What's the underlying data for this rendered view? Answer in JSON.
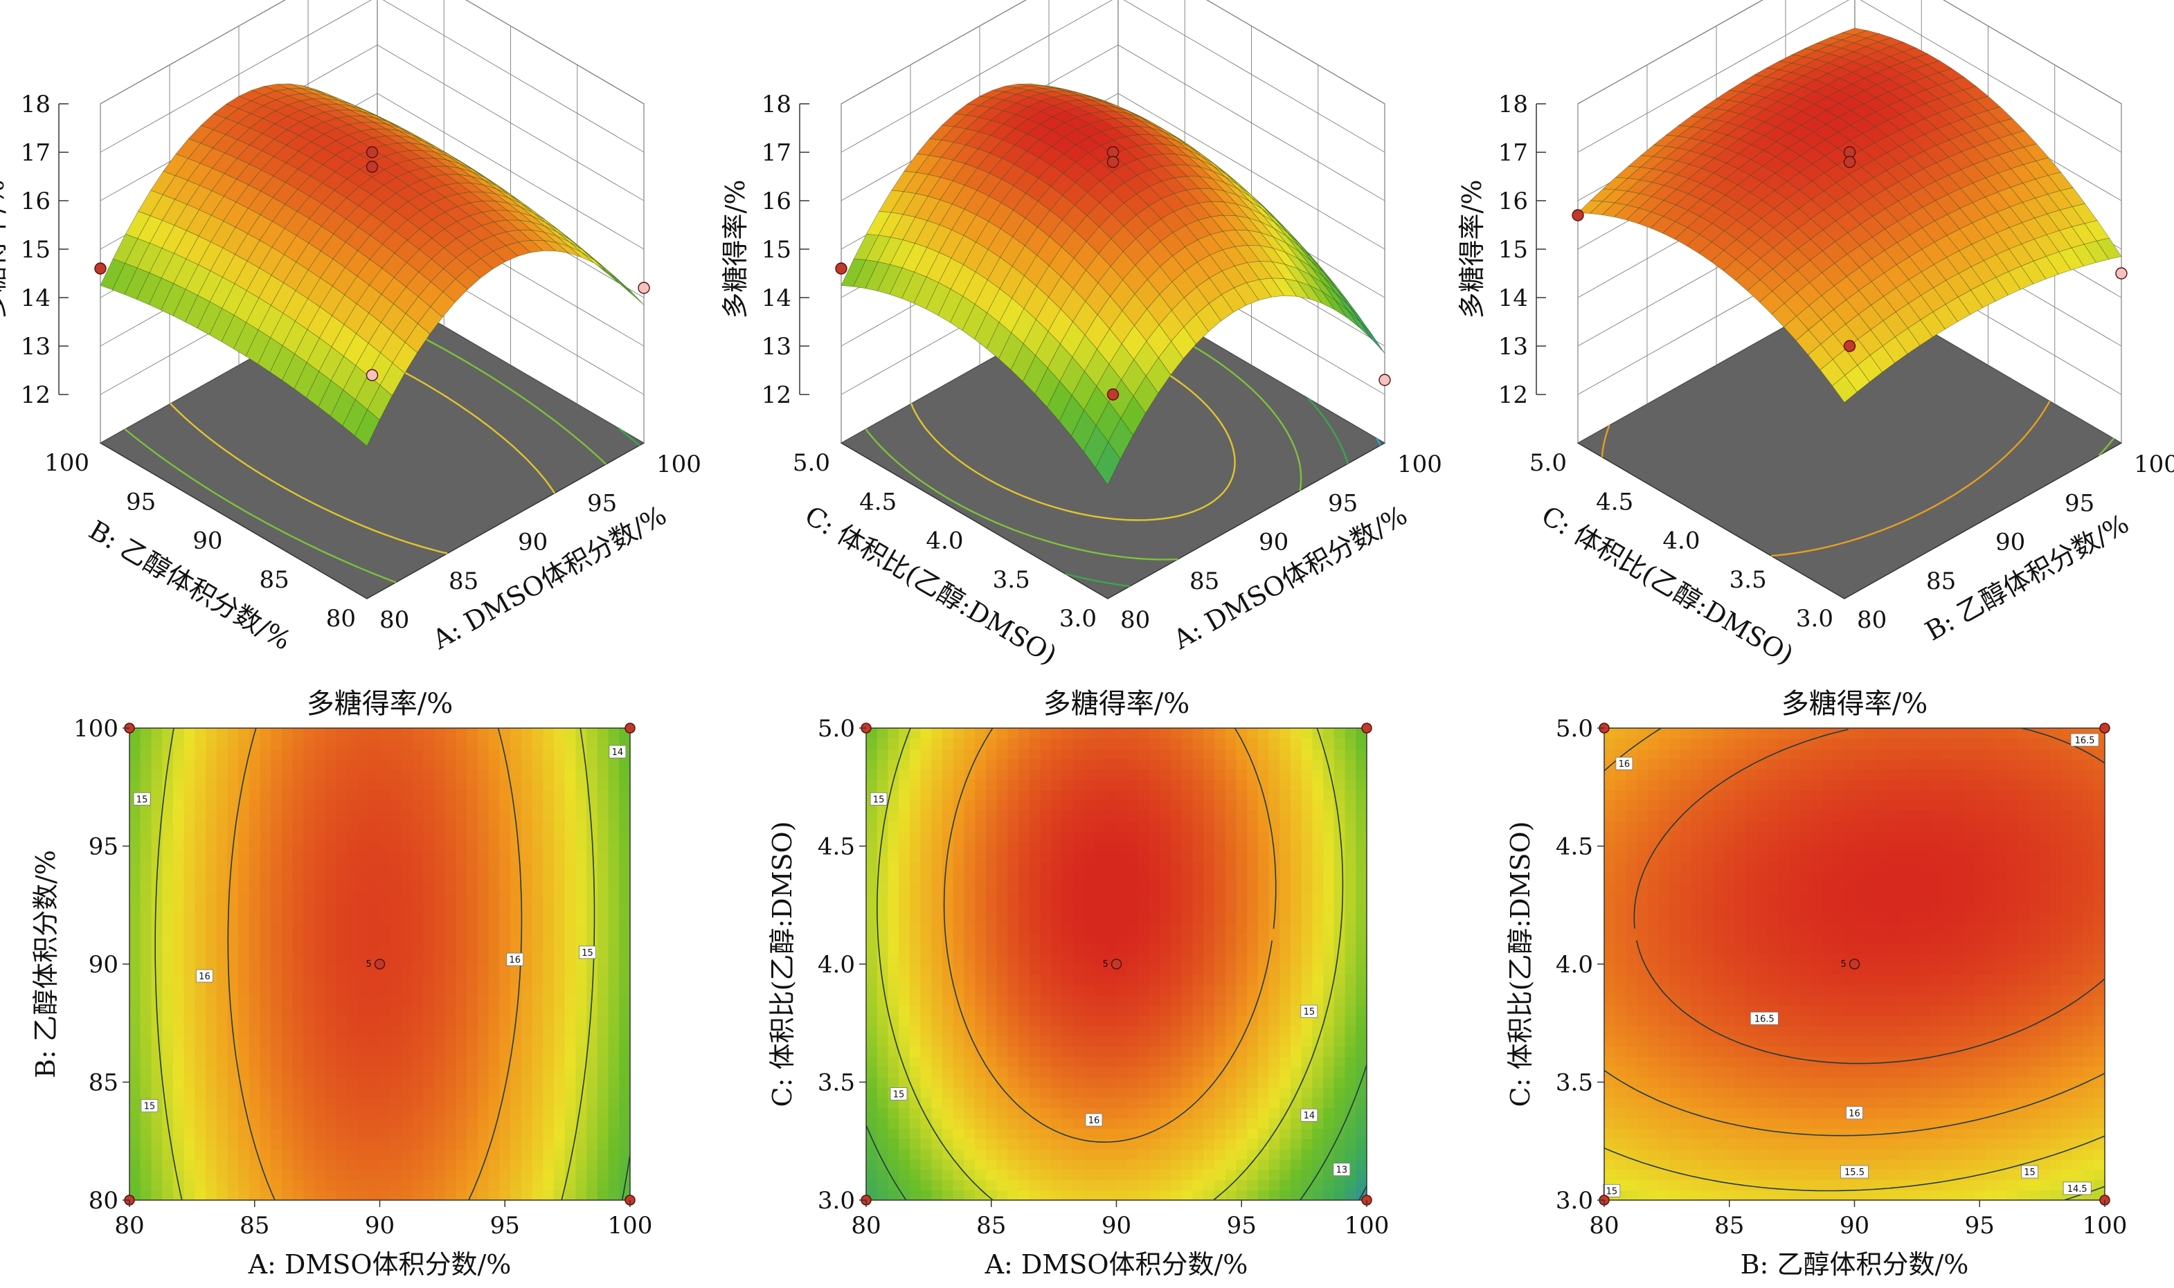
{
  "chart_data": [
    {
      "type": "surface3d",
      "zlabel": "多糖得率/%",
      "x_label": "A: DMSO体积分数/%",
      "x_ticks": [
        "80",
        "85",
        "90",
        "95",
        "100"
      ],
      "y_label": "B: 乙醇体积分数/%",
      "y_ticks": [
        "80",
        "85",
        "90",
        "95",
        "100"
      ],
      "z_ticks": [
        "12",
        "13",
        "14",
        "15",
        "16",
        "17",
        "18"
      ],
      "xlim": [
        80,
        100
      ],
      "ylim": [
        80,
        100
      ],
      "zlim": [
        11,
        18
      ],
      "model": {
        "c0": 16.8,
        "cx": -0.1,
        "cy": 0.1,
        "cxx": -2.35,
        "cyy": -0.35,
        "cxy": 0.05
      },
      "design_points": [
        {
          "x": 0,
          "y": 0,
          "z": 17.0,
          "color": "#c0392b"
        },
        {
          "x": 0,
          "y": 0,
          "z": 16.7,
          "color": "#c0392b"
        },
        {
          "x": -1,
          "y": 1,
          "z": 14.6,
          "color": "#c0392b"
        },
        {
          "x": 1,
          "y": -1,
          "z": 14.2,
          "color": "#f4c2c2"
        },
        {
          "x": 0,
          "y": 0,
          "z": 12.4,
          "color": "#f4c2c2"
        }
      ]
    },
    {
      "type": "surface3d",
      "zlabel": "多糖得率/%",
      "x_label": "A: DMSO体积分数/%",
      "x_ticks": [
        "80",
        "85",
        "90",
        "95",
        "100"
      ],
      "y_label": "C: 体积比(乙醇:DMSO)",
      "y_ticks": [
        "3.0",
        "3.5",
        "4.0",
        "4.5",
        "5.0"
      ],
      "z_ticks": [
        "12",
        "13",
        "14",
        "15",
        "16",
        "17",
        "18"
      ],
      "xlim": [
        80,
        100
      ],
      "ylim": [
        3.0,
        5.0
      ],
      "zlim": [
        11,
        18
      ],
      "model": {
        "c0": 16.95,
        "cx": -0.15,
        "cy": 0.55,
        "cxx": -2.35,
        "cyy": -0.95,
        "cxy": 0.1
      },
      "design_points": [
        {
          "x": 0,
          "y": 0,
          "z": 17.0,
          "color": "#c0392b"
        },
        {
          "x": 0,
          "y": 0,
          "z": 16.8,
          "color": "#c0392b"
        },
        {
          "x": -1,
          "y": 1,
          "z": 14.6,
          "color": "#c0392b"
        },
        {
          "x": 1,
          "y": -1,
          "z": 12.3,
          "color": "#f4c2c2"
        },
        {
          "x": 0,
          "y": 0,
          "z": 12.0,
          "color": "#c0392b"
        }
      ]
    },
    {
      "type": "surface3d",
      "zlabel": "多糖得率/%",
      "x_label": "B: 乙醇体积分数/%",
      "x_ticks": [
        "80",
        "85",
        "90",
        "95",
        "100"
      ],
      "y_label": "C: 体积比(乙醇:DMSO)",
      "y_ticks": [
        "3.0",
        "3.5",
        "4.0",
        "4.5",
        "5.0"
      ],
      "z_ticks": [
        "12",
        "13",
        "14",
        "15",
        "16",
        "17",
        "18"
      ],
      "xlim": [
        80,
        100
      ],
      "ylim": [
        3.0,
        5.0
      ],
      "zlim": [
        11,
        18
      ],
      "model": {
        "c0": 16.9,
        "cx": 0.1,
        "cy": 0.55,
        "cxx": -0.45,
        "cyy": -0.95,
        "cxy": 0.2
      },
      "design_points": [
        {
          "x": 0,
          "y": 0,
          "z": 17.0,
          "color": "#c0392b"
        },
        {
          "x": 0,
          "y": 0,
          "z": 16.8,
          "color": "#c0392b"
        },
        {
          "x": -1,
          "y": 1,
          "z": 15.7,
          "color": "#c0392b"
        },
        {
          "x": 1,
          "y": -1,
          "z": 14.5,
          "color": "#f4c2c2"
        },
        {
          "x": 0,
          "y": 0,
          "z": 13.0,
          "color": "#c0392b"
        }
      ]
    },
    {
      "type": "contour",
      "title": "多糖得率/%",
      "xlabel": "A: DMSO体积分数/%",
      "ylabel": "B: 乙醇体积分数/%",
      "x_ticks": [
        "80",
        "85",
        "90",
        "95",
        "100"
      ],
      "y_ticks": [
        "80",
        "85",
        "90",
        "95",
        "100"
      ],
      "xlim": [
        80,
        100
      ],
      "ylim": [
        80,
        100
      ],
      "model": {
        "c0": 16.8,
        "cx": -0.1,
        "cy": 0.1,
        "cxx": -2.35,
        "cyy": -0.35,
        "cxy": 0.05
      },
      "levels": [
        14,
        15,
        16
      ],
      "level_labels": [
        {
          "text": "14",
          "x": 99.5,
          "y": 99.0
        },
        {
          "text": "15",
          "x": 80.5,
          "y": 97.0
        },
        {
          "text": "15",
          "x": 98.3,
          "y": 90.5
        },
        {
          "text": "15",
          "x": 80.8,
          "y": 84.0
        },
        {
          "text": "16",
          "x": 83.0,
          "y": 89.5
        },
        {
          "text": "16",
          "x": 95.4,
          "y": 90.2
        }
      ],
      "center_label": "5",
      "points": [
        [
          80,
          80
        ],
        [
          80,
          100
        ],
        [
          100,
          80
        ],
        [
          100,
          100
        ],
        [
          90,
          90
        ]
      ]
    },
    {
      "type": "contour",
      "title": "多糖得率/%",
      "xlabel": "A: DMSO体积分数/%",
      "ylabel": "C: 体积比(乙醇:DMSO)",
      "x_ticks": [
        "80",
        "85",
        "90",
        "95",
        "100"
      ],
      "y_ticks": [
        "3.0",
        "3.5",
        "4.0",
        "4.5",
        "5.0"
      ],
      "xlim": [
        80,
        100
      ],
      "ylim": [
        3.0,
        5.0
      ],
      "model": {
        "c0": 16.95,
        "cx": -0.15,
        "cy": 0.55,
        "cxx": -2.35,
        "cyy": -0.95,
        "cxy": 0.1
      },
      "levels": [
        13,
        14,
        15,
        16
      ],
      "level_labels": [
        {
          "text": "15",
          "x": 80.5,
          "y": 4.7
        },
        {
          "text": "15",
          "x": 81.3,
          "y": 3.45
        },
        {
          "text": "16",
          "x": 89.1,
          "y": 3.34
        },
        {
          "text": "15",
          "x": 97.7,
          "y": 3.8
        },
        {
          "text": "14",
          "x": 97.7,
          "y": 3.36
        },
        {
          "text": "13",
          "x": 99.0,
          "y": 3.13
        }
      ],
      "center_label": "5",
      "points": [
        [
          80,
          3.0
        ],
        [
          80,
          5.0
        ],
        [
          100,
          3.0
        ],
        [
          100,
          5.0
        ],
        [
          90,
          4.0
        ]
      ]
    },
    {
      "type": "contour",
      "title": "多糖得率/%",
      "xlabel": "B: 乙醇体积分数/%",
      "ylabel": "C: 体积比(乙醇:DMSO)",
      "x_ticks": [
        "80",
        "85",
        "90",
        "95",
        "100"
      ],
      "y_ticks": [
        "3.0",
        "3.5",
        "4.0",
        "4.5",
        "5.0"
      ],
      "xlim": [
        80,
        100
      ],
      "ylim": [
        3.0,
        5.0
      ],
      "model": {
        "c0": 16.9,
        "cx": 0.1,
        "cy": 0.55,
        "cxx": -0.45,
        "cyy": -0.95,
        "cxy": 0.2
      },
      "levels": [
        14.5,
        15,
        15.5,
        16,
        16.5
      ],
      "level_labels": [
        {
          "text": "16",
          "x": 80.8,
          "y": 4.85
        },
        {
          "text": "16.5",
          "x": 99.2,
          "y": 4.95
        },
        {
          "text": "16.5",
          "x": 86.4,
          "y": 3.77
        },
        {
          "text": "16",
          "x": 90.0,
          "y": 3.37
        },
        {
          "text": "15.5",
          "x": 90.0,
          "y": 3.12
        },
        {
          "text": "15",
          "x": 97.0,
          "y": 3.12
        },
        {
          "text": "14.5",
          "x": 98.9,
          "y": 3.05
        },
        {
          "text": "15",
          "x": 80.3,
          "y": 3.04
        }
      ],
      "center_label": "5",
      "points": [
        [
          80,
          3.0
        ],
        [
          80,
          5.0
        ],
        [
          100,
          3.0
        ],
        [
          100,
          5.0
        ],
        [
          90,
          4.0
        ]
      ]
    }
  ]
}
